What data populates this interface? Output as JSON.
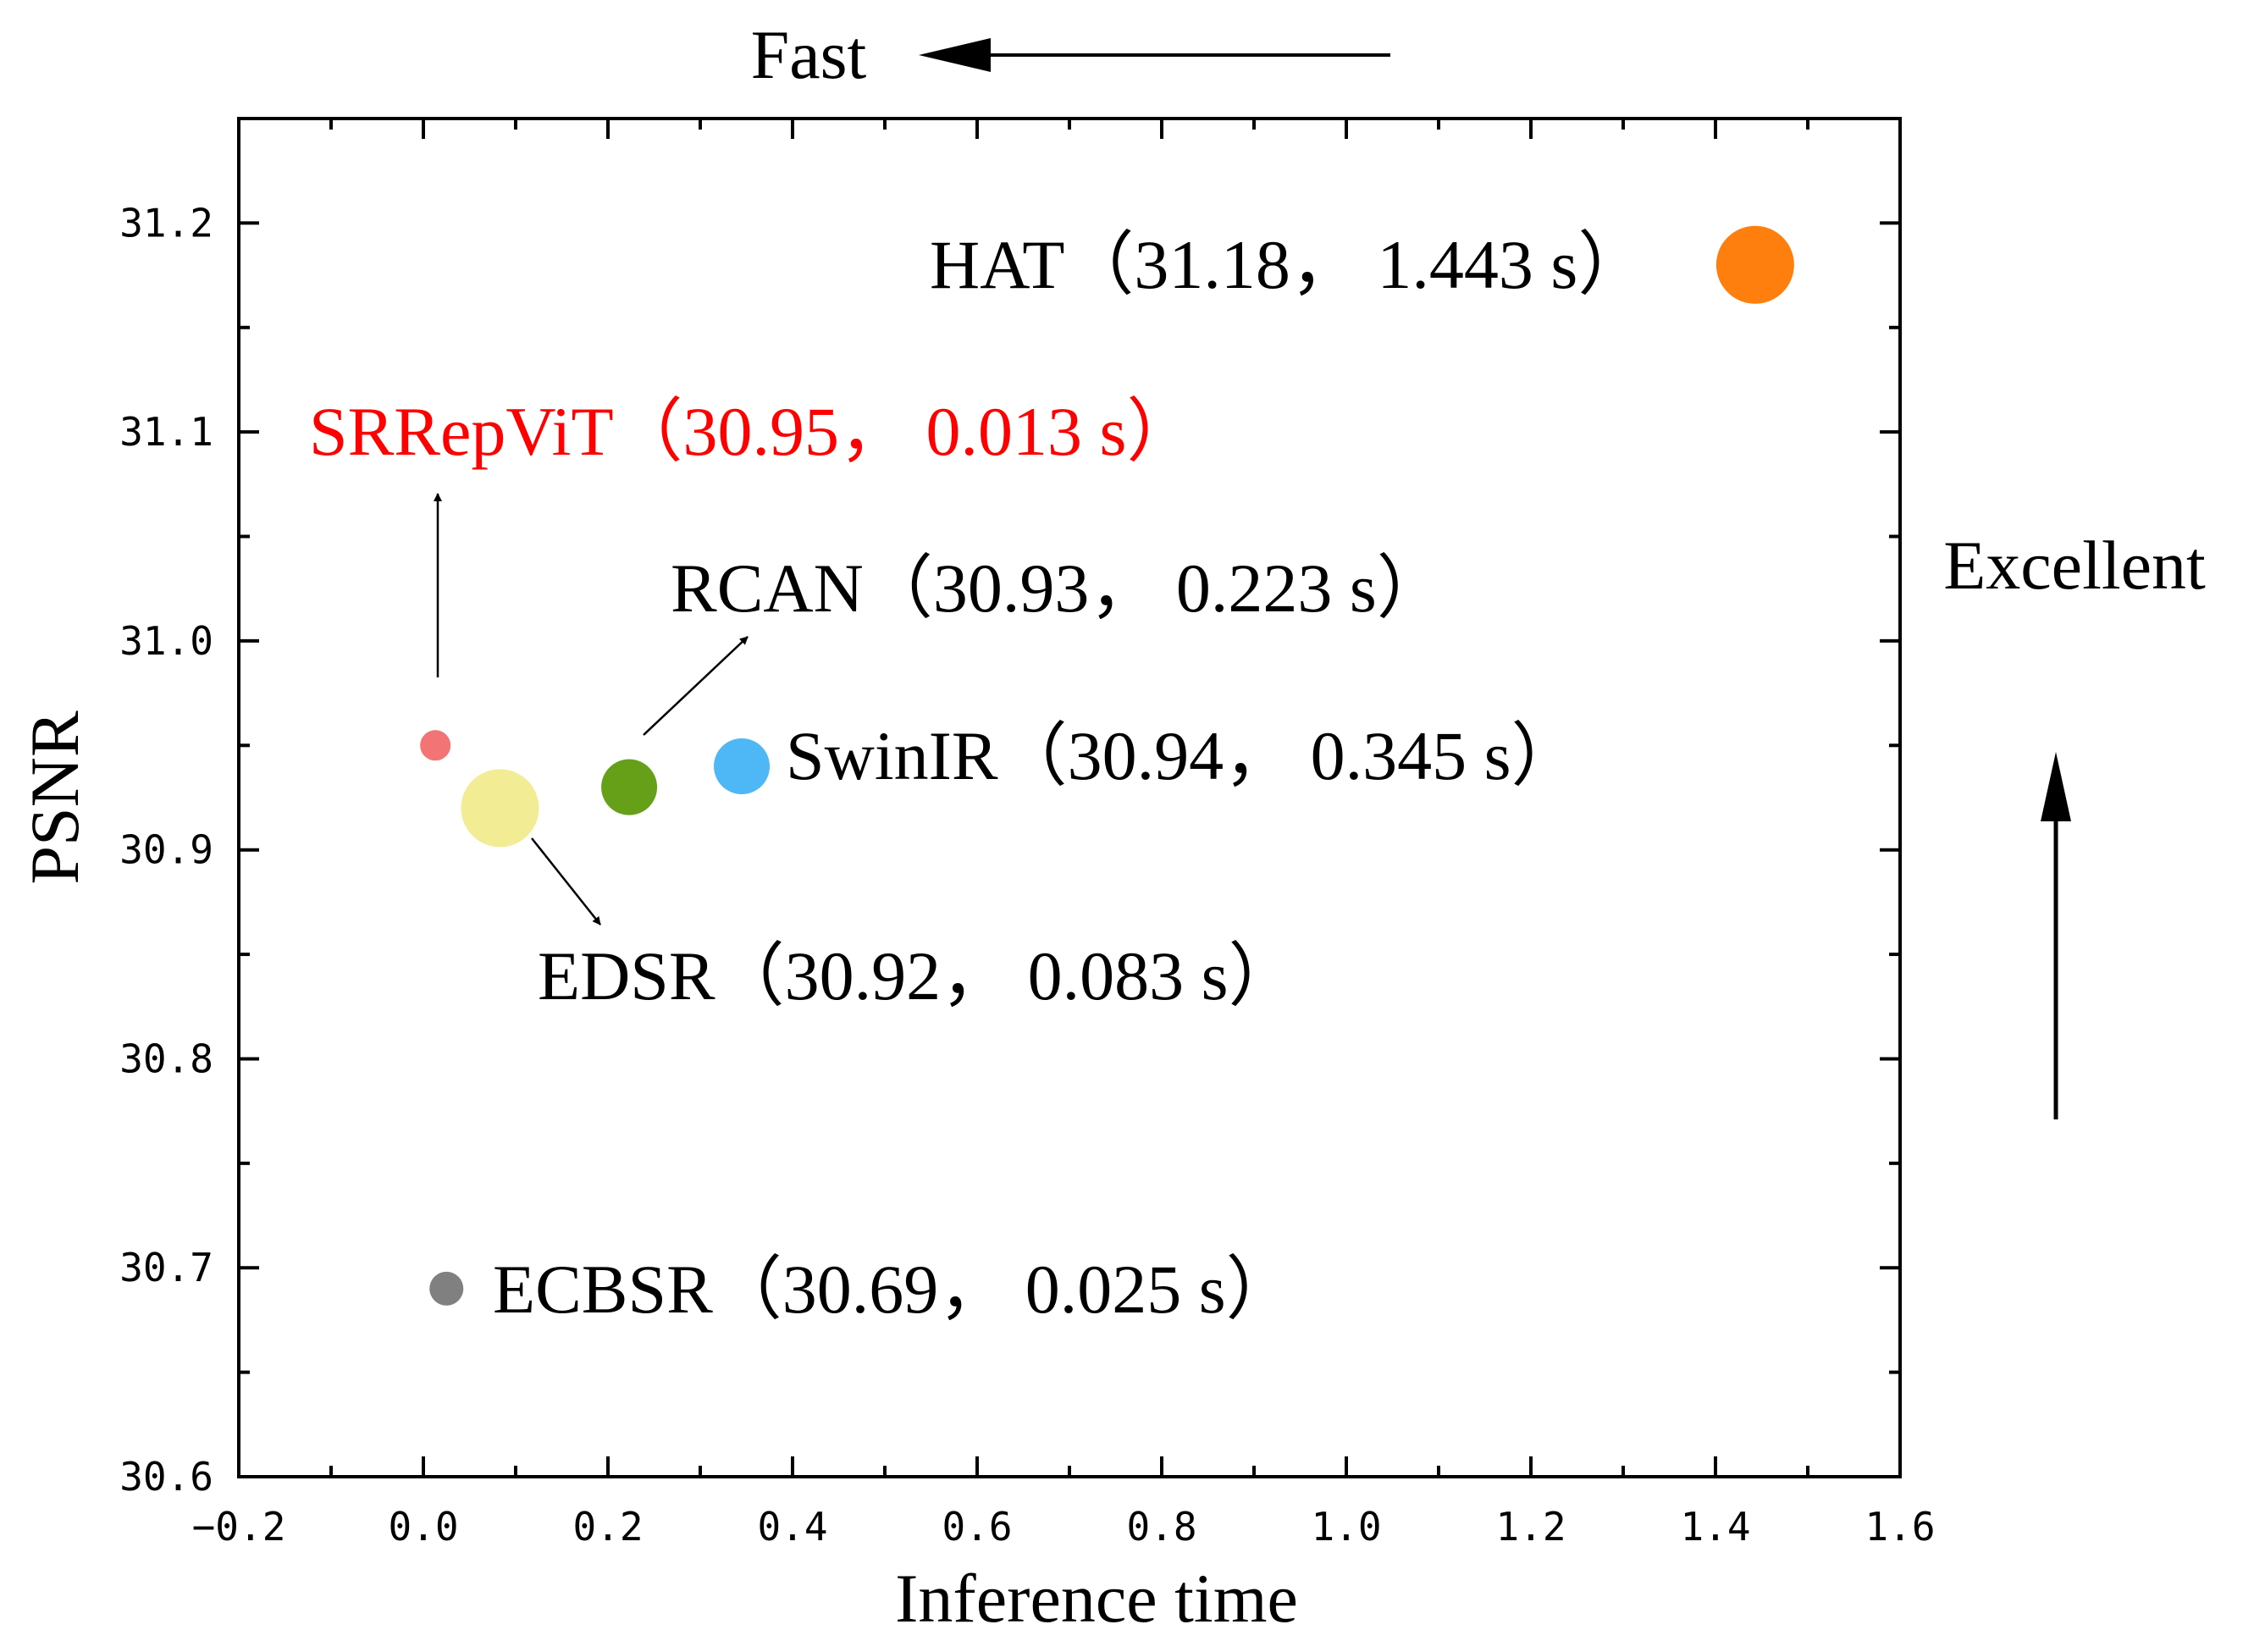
{
  "chart_data": {
    "type": "scatter",
    "title": "",
    "xlabel": "Inference time",
    "ylabel": "PSNR",
    "xlim": [
      -0.2,
      1.6
    ],
    "ylim": [
      30.6,
      31.25
    ],
    "x_ticks": [
      -0.2,
      0.0,
      0.2,
      0.4,
      0.6,
      0.8,
      1.0,
      1.2,
      1.4,
      1.6
    ],
    "x_tick_labels": [
      "−0.2",
      "0.0",
      "0.2",
      "0.4",
      "0.6",
      "0.8",
      "1.0",
      "1.2",
      "1.4",
      "1.6"
    ],
    "y_ticks": [
      30.6,
      30.7,
      30.8,
      30.9,
      31.0,
      31.1,
      31.2
    ],
    "y_tick_labels": [
      "30.6",
      "30.7",
      "30.8",
      "30.9",
      "31.0",
      "31.1",
      "31.2"
    ],
    "grid": false,
    "points": [
      {
        "name": "HAT",
        "x": 1.443,
        "y": 31.18,
        "size_rank": 5,
        "color": "#FF7F0E",
        "label": "HAT（31.18， 1.443 s）"
      },
      {
        "name": "SRRepViT",
        "x": 0.013,
        "y": 30.95,
        "size_rank": 1,
        "color": "#F27474",
        "label": "SRRepViT（30.95， 0.013 s）",
        "highlight": "#FF0000"
      },
      {
        "name": "RCAN",
        "x": 0.223,
        "y": 30.93,
        "size_rank": 3,
        "color": "#66A019",
        "label": "RCAN（30.93， 0.223 s）"
      },
      {
        "name": "SwinIR",
        "x": 0.345,
        "y": 30.94,
        "size_rank": 3,
        "color": "#4EB7F5",
        "label": "SwinIR（30.94， 0.345 s）"
      },
      {
        "name": "EDSR",
        "x": 0.083,
        "y": 30.92,
        "size_rank": 6,
        "color": "#F2EC94",
        "label": "EDSR（30.92， 0.083 s）"
      },
      {
        "name": "ECBSR",
        "x": 0.025,
        "y": 30.69,
        "size_rank": 2,
        "color": "#808080",
        "label": "ECBSR（30.69， 0.025 s）"
      }
    ],
    "annotations": {
      "fast": "Fast",
      "excellent": "Excellent"
    }
  }
}
